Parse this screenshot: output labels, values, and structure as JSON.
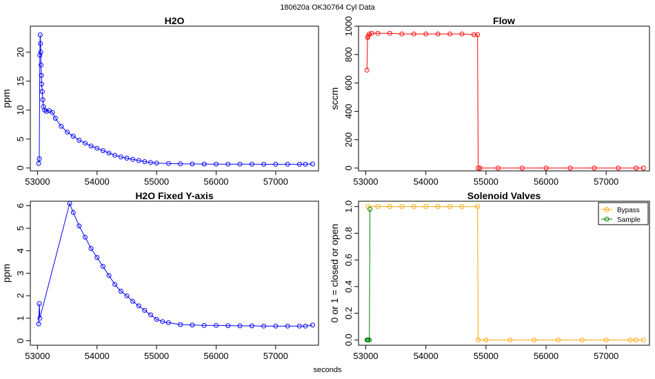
{
  "page": {
    "suptitle": "180620a    OK30764    Cyl Data",
    "xlabel": "seconds"
  },
  "chart_data": [
    {
      "type": "scatter",
      "title": "H2O",
      "xlabel": "",
      "ylabel": "ppm",
      "xlim": [
        52880,
        57720
      ],
      "ylim": [
        -0.5,
        24.5
      ],
      "xticks": [
        53000,
        54000,
        55000,
        56000,
        57000
      ],
      "yticks": [
        0,
        5,
        10,
        15,
        20
      ],
      "color": "#0000ff",
      "x": [
        53020,
        53030,
        53040,
        53045,
        53050,
        53055,
        53060,
        53065,
        53070,
        53080,
        53090,
        53100,
        53120,
        53150,
        53200,
        53250,
        53300,
        53400,
        53500,
        53600,
        53700,
        53800,
        53900,
        54000,
        54100,
        54200,
        54300,
        54400,
        54500,
        54600,
        54700,
        54800,
        54900,
        55000,
        55200,
        55400,
        55600,
        55800,
        56000,
        56200,
        56400,
        56600,
        56800,
        57000,
        57200,
        57400,
        57500,
        57620
      ],
      "y": [
        0.8,
        1.6,
        19.5,
        23,
        21.5,
        20,
        17.8,
        16,
        14.5,
        13.2,
        11.8,
        10.6,
        10.0,
        9.8,
        9.9,
        9.6,
        8.6,
        7.2,
        6.2,
        5.5,
        4.8,
        4.3,
        3.8,
        3.4,
        3.0,
        2.6,
        2.2,
        1.9,
        1.7,
        1.5,
        1.3,
        1.1,
        0.95,
        0.85,
        0.78,
        0.72,
        0.7,
        0.68,
        0.67,
        0.66,
        0.65,
        0.65,
        0.64,
        0.64,
        0.64,
        0.64,
        0.64,
        0.7
      ]
    },
    {
      "type": "scatter",
      "title": "Flow",
      "xlabel": "",
      "ylabel": "sccm",
      "xlim": [
        52880,
        57720
      ],
      "ylim": [
        -20,
        1000
      ],
      "xticks": [
        53000,
        54000,
        55000,
        56000,
        57000
      ],
      "yticks": [
        0,
        200,
        400,
        600,
        800,
        1000
      ],
      "color": "#ff0000",
      "x": [
        53020,
        53030,
        53040,
        53060,
        53100,
        53200,
        53400,
        53600,
        53800,
        54000,
        54200,
        54400,
        54600,
        54800,
        54860,
        54870,
        54900,
        55200,
        55600,
        56000,
        56400,
        56800,
        57200,
        57500,
        57620
      ],
      "y": [
        690,
        920,
        930,
        945,
        950,
        950,
        950,
        945,
        945,
        945,
        945,
        945,
        945,
        940,
        940,
        0,
        0,
        0,
        0,
        0,
        0,
        0,
        0,
        0,
        0
      ]
    },
    {
      "type": "scatter",
      "title": "H2O Fixed Y-axis",
      "xlabel": "",
      "ylabel": "ppm",
      "xlim": [
        52880,
        57720
      ],
      "ylim": [
        -0.2,
        6.2
      ],
      "xticks": [
        53000,
        54000,
        55000,
        56000,
        57000
      ],
      "yticks": [
        0,
        1,
        2,
        3,
        4,
        5,
        6
      ],
      "color": "#0000ff",
      "x": [
        53020,
        53030,
        53040,
        53540,
        53600,
        53700,
        53800,
        53900,
        54000,
        54100,
        54200,
        54300,
        54400,
        54500,
        54600,
        54700,
        54800,
        54900,
        55000,
        55100,
        55200,
        55400,
        55600,
        55800,
        56000,
        56200,
        56400,
        56600,
        56800,
        57000,
        57200,
        57400,
        57500,
        57620
      ],
      "y": [
        0.75,
        1.65,
        1.0,
        6.1,
        5.7,
        5.1,
        4.6,
        4.1,
        3.7,
        3.3,
        2.9,
        2.5,
        2.2,
        2.0,
        1.75,
        1.55,
        1.35,
        1.15,
        0.95,
        0.85,
        0.8,
        0.72,
        0.7,
        0.68,
        0.68,
        0.67,
        0.66,
        0.66,
        0.65,
        0.65,
        0.65,
        0.65,
        0.65,
        0.7
      ]
    },
    {
      "type": "line",
      "title": "Solenoid Valves",
      "xlabel": "",
      "ylabel": "0 or 1 = closed or open",
      "xlim": [
        52880,
        57720
      ],
      "ylim": [
        -0.04,
        1.04
      ],
      "xticks": [
        53000,
        54000,
        55000,
        56000,
        57000
      ],
      "yticks": [
        0.0,
        0.2,
        0.4,
        0.6,
        0.8,
        1.0
      ],
      "legend": "top-right",
      "series": [
        {
          "name": "Bypass",
          "color": "#ffa500",
          "x": [
            53040,
            53200,
            53400,
            53600,
            53800,
            54000,
            54200,
            54400,
            54600,
            54860,
            54870,
            55000,
            55400,
            55800,
            56200,
            56600,
            57000,
            57400,
            57500,
            57620
          ],
          "y": [
            1,
            1,
            1,
            1,
            1,
            1,
            1,
            1,
            1,
            1,
            0,
            0,
            0,
            0,
            0,
            0,
            0,
            0,
            0,
            0
          ]
        },
        {
          "name": "Sample",
          "color": "#008000",
          "x": [
            53020,
            53030,
            53040,
            53060,
            53070
          ],
          "y": [
            0,
            0,
            0,
            0,
            0.98
          ]
        }
      ]
    }
  ]
}
